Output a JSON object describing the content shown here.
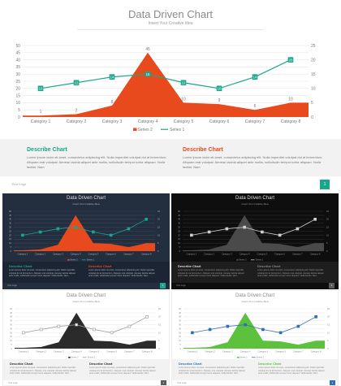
{
  "slide": {
    "title": "Data Driven Chart",
    "subtitle": "Insert Your Creative Idea",
    "logo_text": "Your Logo",
    "page_number": "1"
  },
  "describe": [
    {
      "title": "Describe Chart",
      "color": "#1aa68a",
      "text": "Lorem ipsum dolor sit amet, consectetur adipiscing elit. Nulla imperdiet volutpat dui at fermentum. Aliquam erat volutpat. Aenean lacinia aliquet ante mollis, sollicitudin tempor tortor aliquam. Nulla facilisi. Nam"
    },
    {
      "title": "Describe Chart",
      "color": "#e8491d",
      "text": "Lorem ipsum dolor sit amet, consectetur adipiscing elit. Nulla imperdiet volutpat dui at fermentum. Aliquam erat volutpat. Aenean lacinia aliquet ante mollis, sollicitudin tempor tortor aliquam. Nulla facilisi. Nam"
    }
  ],
  "chart_data": {
    "type": "area",
    "categories": [
      "Category 1",
      "Category 2",
      "Category 3",
      "Category 4",
      "Category 5",
      "Category 6",
      "Category 7",
      "Category 8"
    ],
    "series": [
      {
        "name": "Series 2",
        "type": "area",
        "axis": "left",
        "values": [
          1,
          2,
          8,
          45,
          10,
          9,
          5,
          10
        ]
      },
      {
        "name": "Series 1",
        "type": "line",
        "axis": "right",
        "values": [
          10,
          12,
          14,
          15,
          12,
          10,
          14,
          20
        ]
      }
    ],
    "data_labels": [
      {
        "series": 0,
        "values": [
          "1",
          "2",
          "8",
          "45",
          "10",
          "9",
          "5",
          "10"
        ]
      },
      {
        "series": 1,
        "values": [
          "10",
          "12",
          "14",
          "15",
          "12",
          "10",
          "14",
          "20"
        ]
      }
    ],
    "ylim_left": [
      0,
      50
    ],
    "ylim_right": [
      0,
      25
    ],
    "left_ticks": [
      "0",
      "5",
      "10",
      "15",
      "20",
      "25",
      "30",
      "35",
      "40",
      "45",
      "50"
    ],
    "right_ticks": [
      "0",
      "5",
      "10",
      "15",
      "20",
      "25"
    ],
    "legend": "bottom",
    "grid": true
  },
  "themes": [
    {
      "name": "dark-navy",
      "bg": "#232f3f",
      "titleColor": "#dddddd",
      "textColor": "#aeb6c0",
      "gridColor": "#3a4658",
      "areaColor": "#e8491d",
      "lineColor": "#1aa68a",
      "markerFill": "#1aa68a",
      "descBg": "#1c2533",
      "desc1": "#1aa68a",
      "desc2": "#e8491d",
      "footBg": "#232f3f",
      "badge": "#1aa68a"
    },
    {
      "name": "black",
      "bg": "#0e0e0e",
      "titleColor": "#dddddd",
      "textColor": "#9a9a9a",
      "gridColor": "#2a2a2a",
      "areaColor": "#4a4a4a",
      "lineColor": "#d0d0d0",
      "markerFill": "#d0d0d0",
      "descBg": "#1e1e1e",
      "desc1": "#dddddd",
      "desc2": "#888888",
      "footBg": "#0e0e0e",
      "badge": "#5a5a5a"
    },
    {
      "name": "white-dark",
      "bg": "#ffffff",
      "titleColor": "#8a8a8a",
      "textColor": "#888888",
      "gridColor": "#ececec",
      "areaColor": "#2b2b2b",
      "lineColor": "#9a9a9a",
      "markerFill": "#ffffff",
      "descBg": "#f2f2f2",
      "desc1": "#2b2b2b",
      "desc2": "#2b2b2b",
      "footBg": "#ffffff",
      "badge": "#5a5a5a"
    },
    {
      "name": "white-green",
      "bg": "#ffffff",
      "titleColor": "#8a8a8a",
      "textColor": "#888888",
      "gridColor": "#ececec",
      "areaColor": "#5cc23e",
      "lineColor": "#2e6fb3",
      "markerFill": "#2e6fb3",
      "descBg": "#f2f2f2",
      "desc1": "#2e6fb3",
      "desc2": "#5cc23e",
      "footBg": "#ffffff",
      "badge": "#2e6fb3"
    }
  ]
}
